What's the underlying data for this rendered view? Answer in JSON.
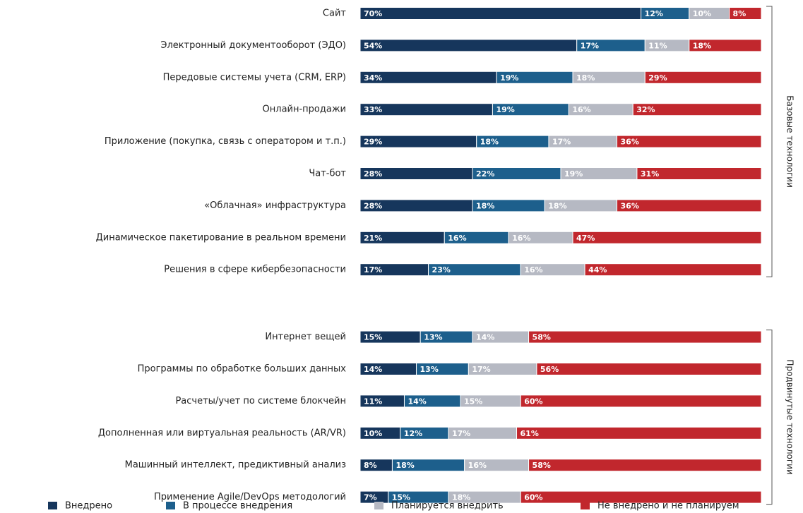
{
  "chart_data": {
    "type": "stacked_bar",
    "orientation": "horizontal",
    "groups": [
      {
        "label": "Базовые технологии",
        "categories": [
          "Сайт",
          "Электронный документооборот (ЭДО)",
          "Передовые системы учета (CRM, ERP)",
          "Онлайн-продажи",
          "Приложение (покупка, связь с оператором и т.п.)",
          "Чат-бот",
          "«Облачная» инфраструктура",
          "Динамическое пакетирование в реальном времени",
          "Решения в сфере кибербезопасности"
        ]
      },
      {
        "label": "Продвинутые технологии",
        "categories": [
          "Интернет вещей",
          "Программы по обработке больших данных",
          "Расчеты/учет по системе блокчейн",
          "Дополненная или виртуальная реальность (AR/VR)",
          "Машинный интеллект, предиктивный анализ",
          "Применение Agile/DevOps методологий"
        ]
      }
    ],
    "xlim": [
      0,
      100
    ],
    "series": [
      {
        "name": "Внедрено",
        "color": "#16365c",
        "values": [
          70,
          54,
          34,
          33,
          29,
          28,
          28,
          21,
          17,
          15,
          14,
          11,
          10,
          8,
          7
        ],
        "value_labels": [
          "70%",
          "54%",
          "34%",
          "33%",
          "29%",
          "28%",
          "28%",
          "21%",
          "17%",
          "15%",
          "14%",
          "11%",
          "10%",
          "8%",
          "7%"
        ]
      },
      {
        "name": "В процессе внедрения",
        "color": "#1d5f8c",
        "values": [
          12,
          17,
          19,
          19,
          18,
          22,
          18,
          16,
          23,
          13,
          13,
          14,
          12,
          18,
          15
        ],
        "value_labels": [
          "12%",
          "17%",
          "19%",
          "19%",
          "18%",
          "22%",
          "18%",
          "16%",
          "23%",
          "13%",
          "13%",
          "14%",
          "12%",
          "18%",
          "15%"
        ]
      },
      {
        "name": "Планируется внедрить",
        "color": "#b6b9c3",
        "values": [
          10,
          11,
          18,
          16,
          17,
          19,
          18,
          16,
          16,
          14,
          17,
          15,
          17,
          16,
          18
        ],
        "value_labels": [
          "10%",
          "11%",
          "18%",
          "16%",
          "17%",
          "19%",
          "18%",
          "16%",
          "16%",
          "14%",
          "17%",
          "15%",
          "17%",
          "16%",
          "18%"
        ]
      },
      {
        "name": "Не внедрено и не планируем",
        "color": "#c1272d",
        "values": [
          8,
          18,
          29,
          32,
          36,
          31,
          36,
          47,
          44,
          58,
          56,
          60,
          61,
          58,
          60
        ],
        "value_labels": [
          "8%",
          "18%",
          "29%",
          "32%",
          "36%",
          "31%",
          "36%",
          "47%",
          "44%",
          "58%",
          "56%",
          "60%",
          "61%",
          "58%",
          "60%"
        ]
      }
    ]
  }
}
